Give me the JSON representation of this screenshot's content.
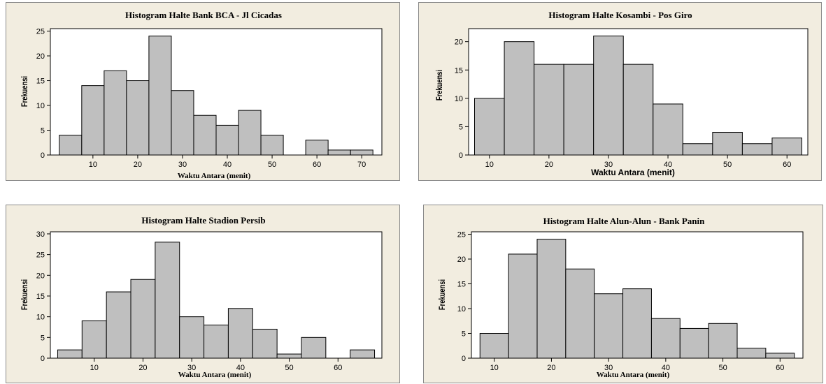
{
  "chart_data": [
    {
      "type": "bar",
      "title": "Histogram Halte Bank BCA - Jl Cicadas",
      "xlabel": "Waktu Antara (menit)",
      "ylabel": "Frekuensi",
      "x": [
        5,
        10,
        15,
        20,
        25,
        30,
        35,
        40,
        45,
        50,
        55,
        60,
        65,
        70
      ],
      "values": [
        4,
        14,
        17,
        15,
        24,
        13,
        8,
        6,
        9,
        4,
        0,
        3,
        1,
        1
      ],
      "bin_width": 5,
      "xlim": [
        0.5,
        74.5
      ],
      "ylim": [
        0,
        25.5
      ],
      "xticks": [
        "10",
        "20",
        "30",
        "40",
        "50",
        "60",
        "70"
      ],
      "yticks": [
        "0",
        "5",
        "10",
        "15",
        "20",
        "25"
      ],
      "grid": false
    },
    {
      "type": "bar",
      "title": "Histogram Halte Kosambi - Pos Giro",
      "xlabel": "Waktu Antara (menit)",
      "ylabel": "Frekuensi",
      "x": [
        10,
        15,
        20,
        25,
        30,
        35,
        40,
        45,
        50,
        55,
        60
      ],
      "values": [
        10,
        20,
        16,
        16,
        21,
        16,
        9,
        2,
        4,
        2,
        3
      ],
      "bin_width": 5,
      "xlim": [
        6.5,
        63.5
      ],
      "ylim": [
        0,
        22.3
      ],
      "xticks": [
        "10",
        "20",
        "30",
        "40",
        "50",
        "60"
      ],
      "yticks": [
        "0",
        "5",
        "10",
        "15",
        "20"
      ],
      "grid": false
    },
    {
      "type": "bar",
      "title": "Histogram Halte Stadion Persib",
      "xlabel": "Waktu Antara (menit)",
      "ylabel": "Frekuensi",
      "x": [
        5,
        10,
        15,
        20,
        25,
        30,
        35,
        40,
        45,
        50,
        55,
        60,
        65
      ],
      "values": [
        2,
        9,
        16,
        19,
        28,
        10,
        8,
        12,
        7,
        1,
        5,
        0,
        2
      ],
      "bin_width": 5,
      "xlim": [
        1.0,
        69.0
      ],
      "ylim": [
        0,
        30.5
      ],
      "xticks": [
        "10",
        "20",
        "30",
        "40",
        "50",
        "60"
      ],
      "yticks": [
        "0",
        "5",
        "10",
        "15",
        "20",
        "25",
        "30"
      ],
      "grid": false
    },
    {
      "type": "bar",
      "title": "Histogram Halte Alun-Alun - Bank Panin",
      "xlabel": "Waktu Antara (menit)",
      "ylabel": "Frekuensi",
      "x": [
        10,
        15,
        20,
        25,
        30,
        35,
        40,
        45,
        50,
        55,
        60
      ],
      "values": [
        5,
        21,
        24,
        18,
        13,
        14,
        8,
        6,
        7,
        2,
        1
      ],
      "bin_width": 5,
      "xlim": [
        6.0,
        64.0
      ],
      "ylim": [
        0,
        25.5
      ],
      "xticks": [
        "10",
        "20",
        "30",
        "40",
        "50",
        "60"
      ],
      "yticks": [
        "0",
        "5",
        "10",
        "15",
        "20",
        "25"
      ],
      "grid": false
    }
  ],
  "colors": {
    "panel_bg": "#f2ede0",
    "bar_fill": "#bfbfbf",
    "bar_stroke": "#000000"
  }
}
